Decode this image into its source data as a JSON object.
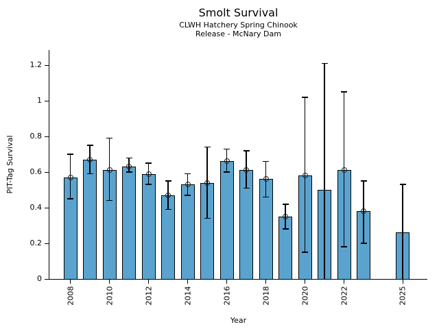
{
  "header": {
    "title": "Smolt Survival",
    "subtitle_line1": "CLWH Hatchery Spring Chinook",
    "subtitle_line2": "Release - McNary Dam"
  },
  "chart_data": {
    "type": "bar",
    "title": "Smolt Survival",
    "subtitle_line1": "CLWH Hatchery Spring Chinook",
    "subtitle_line2": "Release - McNary Dam",
    "xlabel": "Year",
    "ylabel": "PIT-Tag Survival",
    "ylim": [
      0,
      1.285
    ],
    "xlim": [
      2006.9,
      2026.2
    ],
    "grid": false,
    "legend": "none",
    "yticks": [
      0,
      0.2,
      0.4,
      0.6,
      0.8,
      1,
      1.2
    ],
    "ytick_labels": [
      "0",
      "0.2",
      "0.4",
      "0.6",
      "0.8",
      "1",
      "1.2"
    ],
    "xticks": [
      2008,
      2010,
      2012,
      2014,
      2016,
      2018,
      2020,
      2022,
      2025
    ],
    "xtick_labels": [
      "2008",
      "2010",
      "2012",
      "2014",
      "2016",
      "2018",
      "2020",
      "2022",
      "2025"
    ],
    "bar_color": "#5BA3CF",
    "bar_edge_color": "#000000",
    "error_bar_color": "#000000",
    "marker_style": "open-circle",
    "series": [
      {
        "name": "PIT-Tag Survival",
        "points": [
          {
            "year": 2008,
            "value": 0.57,
            "err_low": 0.45,
            "err_high": 0.7,
            "marker": true
          },
          {
            "year": 2009,
            "value": 0.67,
            "err_low": 0.59,
            "err_high": 0.75,
            "marker": true
          },
          {
            "year": 2010,
            "value": 0.61,
            "err_low": 0.44,
            "err_high": 0.79,
            "marker": true
          },
          {
            "year": 2011,
            "value": 0.63,
            "err_low": 0.6,
            "err_high": 0.68,
            "marker": true
          },
          {
            "year": 2012,
            "value": 0.59,
            "err_low": 0.53,
            "err_high": 0.65,
            "marker": true
          },
          {
            "year": 2013,
            "value": 0.47,
            "err_low": 0.39,
            "err_high": 0.55,
            "marker": true
          },
          {
            "year": 2014,
            "value": 0.53,
            "err_low": 0.47,
            "err_high": 0.59,
            "marker": true
          },
          {
            "year": 2015,
            "value": 0.54,
            "err_low": 0.34,
            "err_high": 0.74,
            "marker": true
          },
          {
            "year": 2016,
            "value": 0.66,
            "err_low": 0.6,
            "err_high": 0.73,
            "marker": true
          },
          {
            "year": 2017,
            "value": 0.61,
            "err_low": 0.51,
            "err_high": 0.72,
            "marker": true
          },
          {
            "year": 2018,
            "value": 0.56,
            "err_low": 0.46,
            "err_high": 0.66,
            "marker": true
          },
          {
            "year": 2019,
            "value": 0.35,
            "err_low": 0.28,
            "err_high": 0.42,
            "marker": true
          },
          {
            "year": 2020,
            "value": 0.58,
            "err_low": 0.15,
            "err_high": 1.02,
            "marker": true
          },
          {
            "year": 2021,
            "value": 0.5,
            "err_low": 0.0,
            "err_high": 1.21,
            "marker": false
          },
          {
            "year": 2022,
            "value": 0.61,
            "err_low": 0.18,
            "err_high": 1.05,
            "marker": true
          },
          {
            "year": 2023,
            "value": 0.38,
            "err_low": 0.2,
            "err_high": 0.55,
            "marker": true
          },
          {
            "year": 2025,
            "value": 0.26,
            "err_low": 0.0,
            "err_high": 0.53,
            "marker": false
          }
        ]
      }
    ]
  }
}
